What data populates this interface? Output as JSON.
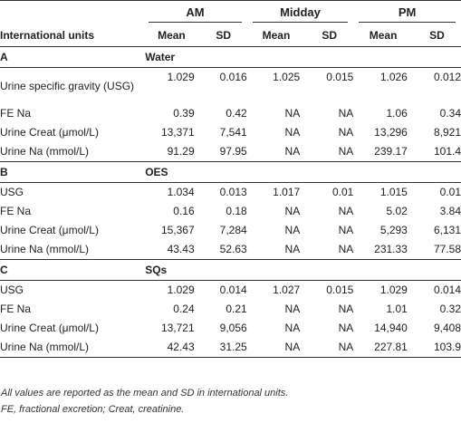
{
  "header": {
    "row_label": "International units",
    "groups": [
      "AM",
      "Midday",
      "PM"
    ],
    "mean_label": "Mean",
    "sd_label": "SD"
  },
  "sections": [
    {
      "letter": "A",
      "name": "Water",
      "rows": [
        {
          "label": "Urine specific gravity (USG)",
          "am_mean": "1.029",
          "am_sd": "0.016",
          "mid_mean": "1.025",
          "mid_sd": "0.015",
          "pm_mean": "1.026",
          "pm_sd": "0.012"
        },
        {
          "label": "FE Na",
          "am_mean": "0.39",
          "am_sd": "0.42",
          "mid_mean": "NA",
          "mid_sd": "NA",
          "pm_mean": "1.06",
          "pm_sd": "0.34"
        },
        {
          "label": "Urine Creat (μmol/L)",
          "am_mean": "13,371",
          "am_sd": "7,541",
          "mid_mean": "NA",
          "mid_sd": "NA",
          "pm_mean": "13,296",
          "pm_sd": "8,921"
        },
        {
          "label": "Urine Na (mmol/L)",
          "am_mean": "91.29",
          "am_sd": "97.95",
          "mid_mean": "NA",
          "mid_sd": "NA",
          "pm_mean": "239.17",
          "pm_sd": "101.4"
        }
      ]
    },
    {
      "letter": "B",
      "name": "OES",
      "rows": [
        {
          "label": "USG",
          "am_mean": "1.034",
          "am_sd": "0.013",
          "mid_mean": "1.017",
          "mid_sd": "0.01",
          "pm_mean": "1.015",
          "pm_sd": "0.01"
        },
        {
          "label": "FE Na",
          "am_mean": "0.16",
          "am_sd": "0.18",
          "mid_mean": "NA",
          "mid_sd": "NA",
          "pm_mean": "5.02",
          "pm_sd": "3.84"
        },
        {
          "label": "Urine Creat (μmol/L)",
          "am_mean": "15,367",
          "am_sd": "7,284",
          "mid_mean": "NA",
          "mid_sd": "NA",
          "pm_mean": "5,293",
          "pm_sd": "6,131"
        },
        {
          "label": "Urine Na (mmol/L)",
          "am_mean": "43.43",
          "am_sd": "52.63",
          "mid_mean": "NA",
          "mid_sd": "NA",
          "pm_mean": "231.33",
          "pm_sd": "77.58"
        }
      ]
    },
    {
      "letter": "C",
      "name": "SQs",
      "rows": [
        {
          "label": "USG",
          "am_mean": "1.029",
          "am_sd": "0.014",
          "mid_mean": "1.027",
          "mid_sd": "0.015",
          "pm_mean": "1.029",
          "pm_sd": "0.014"
        },
        {
          "label": "FE Na",
          "am_mean": "0.24",
          "am_sd": "0.21",
          "mid_mean": "NA",
          "mid_sd": "NA",
          "pm_mean": "1.01",
          "pm_sd": "0.32"
        },
        {
          "label": "Urine Creat (μmol/L)",
          "am_mean": "13,721",
          "am_sd": "9,056",
          "mid_mean": "NA",
          "mid_sd": "NA",
          "pm_mean": "14,940",
          "pm_sd": "9,408"
        },
        {
          "label": "Urine Na (mmol/L)",
          "am_mean": "42.43",
          "am_sd": "31.25",
          "mid_mean": "NA",
          "mid_sd": "NA",
          "pm_mean": "227.81",
          "pm_sd": "103.9"
        }
      ]
    }
  ],
  "footnotes": [
    "All values are reported as the mean and SD in international units.",
    "FE, fractional excretion; Creat, creatinine."
  ]
}
